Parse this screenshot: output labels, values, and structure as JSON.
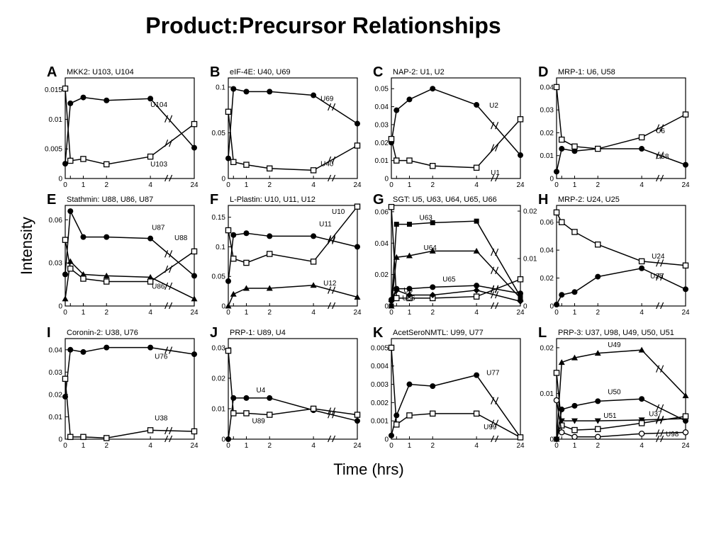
{
  "title": "Product:Precursor Relationships",
  "ylabel": "Intensity",
  "xlabel": "Time (hrs)",
  "chart_data": [
    {
      "type": "line",
      "letter": "A",
      "title": "MKK2: U103, U104",
      "x": [
        "0",
        "0.25",
        "1",
        "2",
        "4",
        "24"
      ],
      "yticks": [
        "0",
        "0.005",
        "0.01",
        "0.015"
      ],
      "ylim": [
        0,
        0.017
      ],
      "series": [
        {
          "name": "U104",
          "marker": "filled-circle",
          "values": [
            0.0025,
            0.0127,
            0.0137,
            0.0132,
            0.0135,
            0.0052
          ]
        },
        {
          "name": "U103",
          "marker": "open-square",
          "values": [
            0.0152,
            0.003,
            0.0033,
            0.0024,
            0.0037,
            0.0092
          ]
        }
      ]
    },
    {
      "type": "line",
      "letter": "B",
      "title": "eIF-4E: U40, U69",
      "x": [
        "0",
        "0.25",
        "1",
        "2",
        "4",
        "24"
      ],
      "yticks": [
        "0",
        "0.05",
        "0.1"
      ],
      "ylim": [
        0,
        0.11
      ],
      "series": [
        {
          "name": "U69",
          "marker": "filled-circle",
          "values": [
            0.022,
            0.098,
            0.095,
            0.095,
            0.091,
            0.06
          ]
        },
        {
          "name": "U40",
          "marker": "open-square",
          "values": [
            0.073,
            0.018,
            0.015,
            0.011,
            0.009,
            0.036
          ]
        }
      ]
    },
    {
      "type": "line",
      "letter": "C",
      "title": "NAP-2: U1, U2",
      "x": [
        "0",
        "0.25",
        "1",
        "2",
        "4",
        "24"
      ],
      "yticks": [
        "0",
        "0.01",
        "0.02",
        "0.03",
        "0.04",
        "0.05"
      ],
      "ylim": [
        0,
        0.056
      ],
      "series": [
        {
          "name": "U2",
          "marker": "filled-circle",
          "values": [
            0.02,
            0.038,
            0.044,
            0.05,
            0.041,
            0.013
          ]
        },
        {
          "name": "U1",
          "marker": "open-square",
          "values": [
            0.022,
            0.01,
            0.01,
            0.007,
            0.006,
            0.033
          ]
        }
      ]
    },
    {
      "type": "line",
      "letter": "D",
      "title": "MRP-1: U6, U58",
      "x": [
        "0",
        "0.25",
        "1",
        "2",
        "4",
        "24"
      ],
      "yticks": [
        "0",
        "0.01",
        "0.02",
        "0.03",
        "0.04"
      ],
      "ylim": [
        0,
        0.044
      ],
      "series": [
        {
          "name": "U58",
          "marker": "filled-circle",
          "values": [
            0.003,
            0.013,
            0.012,
            0.013,
            0.013,
            0.006
          ]
        },
        {
          "name": "U6",
          "marker": "open-square",
          "values": [
            0.04,
            0.017,
            0.014,
            0.013,
            0.018,
            0.028
          ]
        }
      ]
    },
    {
      "type": "line",
      "letter": "E",
      "title": "Stathmin: U88, U86, U87",
      "x": [
        "0",
        "0.25",
        "1",
        "2",
        "4",
        "24"
      ],
      "yticks": [
        "0",
        "0.03",
        "0.06"
      ],
      "ylim": [
        0,
        0.07
      ],
      "series": [
        {
          "name": "U87",
          "marker": "filled-circle",
          "values": [
            0.022,
            0.066,
            0.048,
            0.048,
            0.047,
            0.021
          ]
        },
        {
          "name": "U86",
          "marker": "filled-triangle",
          "values": [
            0.005,
            0.031,
            0.022,
            0.021,
            0.02,
            0.005
          ]
        },
        {
          "name": "U88",
          "marker": "open-square",
          "values": [
            0.046,
            0.026,
            0.019,
            0.017,
            0.017,
            0.038
          ]
        }
      ]
    },
    {
      "type": "line",
      "letter": "F",
      "title": "L-Plastin: U10, U11, U12",
      "x": [
        "0",
        "0.25",
        "1",
        "2",
        "4",
        "24"
      ],
      "yticks": [
        "0",
        "0.05",
        "0.1",
        "0.15"
      ],
      "ylim": [
        0,
        0.17
      ],
      "series": [
        {
          "name": "U11",
          "marker": "filled-circle",
          "values": [
            0.042,
            0.12,
            0.123,
            0.118,
            0.118,
            0.1
          ]
        },
        {
          "name": "U10",
          "marker": "open-square",
          "values": [
            0.128,
            0.08,
            0.073,
            0.088,
            0.075,
            0.168
          ]
        },
        {
          "name": "U12",
          "marker": "filled-triangle",
          "values": [
            0.0,
            0.02,
            0.03,
            0.03,
            0.035,
            0.015
          ]
        }
      ]
    },
    {
      "type": "line",
      "letter": "G",
      "title": "SGT: U5, U63, U64, U65, U66",
      "x": [
        "0",
        "0.25",
        "1",
        "2",
        "4",
        "24"
      ],
      "yticks": [
        "0",
        "0.02",
        "0.04",
        "0.06"
      ],
      "ylim": [
        0,
        0.064
      ],
      "yticks_right": [
        "0",
        "0.01",
        "0.02"
      ],
      "series": [
        {
          "name": "U5",
          "marker": "open-square",
          "values": [
            0.063,
            0.005,
            0.005,
            0.005,
            0.006,
            0.017
          ]
        },
        {
          "name": "U63",
          "marker": "filled-square",
          "values": [
            0.0,
            0.052,
            0.052,
            0.053,
            0.054,
            0.006
          ]
        },
        {
          "name": "U64",
          "marker": "filled-triangle",
          "values": [
            0.0,
            0.031,
            0.032,
            0.035,
            0.035,
            0.005
          ]
        },
        {
          "name": "U65",
          "marker": "filled-circle",
          "values": [
            0.004,
            0.011,
            0.011,
            0.012,
            0.013,
            0.008
          ]
        },
        {
          "name": "U66",
          "marker": "filled-diamond",
          "values": [
            0.003,
            0.01,
            0.007,
            0.007,
            0.01,
            0.003
          ]
        }
      ]
    },
    {
      "type": "line",
      "letter": "H",
      "title": "MRP-2: U24, U25",
      "x": [
        "0",
        "0.25",
        "1",
        "2",
        "4",
        "24"
      ],
      "yticks": [
        "0",
        "0.02",
        "0.04",
        "0.06"
      ],
      "ylim": [
        0,
        0.072
      ],
      "series": [
        {
          "name": "U24",
          "marker": "open-square",
          "values": [
            0.067,
            0.06,
            0.053,
            0.044,
            0.032,
            0.029
          ]
        },
        {
          "name": "U25",
          "marker": "filled-circle",
          "values": [
            0.001,
            0.008,
            0.01,
            0.021,
            0.027,
            0.012
          ]
        }
      ]
    },
    {
      "type": "line",
      "letter": "I",
      "title": "Coronin-2: U38, U76",
      "x": [
        "0",
        "0.25",
        "1",
        "2",
        "4",
        "24"
      ],
      "yticks": [
        "0",
        "0.01",
        "0.02",
        "0.03",
        "0.04"
      ],
      "ylim": [
        0,
        0.045
      ],
      "series": [
        {
          "name": "U76",
          "marker": "filled-circle",
          "values": [
            0.019,
            0.04,
            0.039,
            0.041,
            0.041,
            0.038
          ]
        },
        {
          "name": "U38",
          "marker": "open-square",
          "values": [
            0.027,
            0.001,
            0.001,
            0.0005,
            0.004,
            0.0035
          ]
        }
      ]
    },
    {
      "type": "line",
      "letter": "J",
      "title": "PRP-1: U89, U4",
      "x": [
        "0",
        "0.25",
        "1",
        "2",
        "4",
        "24"
      ],
      "yticks": [
        "0",
        "0.01",
        "0.02",
        "0.03"
      ],
      "ylim": [
        0,
        0.033
      ],
      "series": [
        {
          "name": "U4",
          "marker": "filled-circle",
          "values": [
            0.0,
            0.0135,
            0.0135,
            0.0135,
            0.0095,
            0.006
          ]
        },
        {
          "name": "U89",
          "marker": "open-square",
          "values": [
            0.029,
            0.0085,
            0.0085,
            0.008,
            0.01,
            0.008
          ]
        }
      ]
    },
    {
      "type": "line",
      "letter": "K",
      "title": "AcetSeroNMTL: U99, U77",
      "x": [
        "0",
        "0.25",
        "1",
        "2",
        "4",
        "24"
      ],
      "yticks": [
        "0",
        "0.001",
        "0.002",
        "0.003",
        "0.004",
        "0.005"
      ],
      "ylim": [
        0,
        0.0055
      ],
      "series": [
        {
          "name": "U77",
          "marker": "filled-circle",
          "values": [
            0.0002,
            0.0013,
            0.003,
            0.0029,
            0.0035,
            0.0001
          ]
        },
        {
          "name": "U99",
          "marker": "open-square",
          "values": [
            0.005,
            0.0008,
            0.0013,
            0.0014,
            0.0014,
            0.0001
          ]
        }
      ]
    },
    {
      "type": "line",
      "letter": "L",
      "title": "PRP-3: U37, U98, U49, U50, U51",
      "x": [
        "0",
        "0.25",
        "1",
        "2",
        "4",
        "24"
      ],
      "yticks": [
        "0",
        "0.01",
        "0.02"
      ],
      "ylim": [
        0,
        0.022
      ],
      "series": [
        {
          "name": "U49",
          "marker": "filled-triangle",
          "values": [
            0.0,
            0.0168,
            0.0178,
            0.0188,
            0.0195,
            0.0095
          ]
        },
        {
          "name": "U50",
          "marker": "filled-circle",
          "values": [
            0.0,
            0.0065,
            0.0073,
            0.0083,
            0.0088,
            0.004
          ]
        },
        {
          "name": "U51",
          "marker": "filled-triangle-down",
          "values": [
            0.0,
            0.004,
            0.004,
            0.004,
            0.0042,
            0.0045
          ]
        },
        {
          "name": "U37",
          "marker": "open-square",
          "values": [
            0.0145,
            0.003,
            0.002,
            0.0022,
            0.0035,
            0.005
          ]
        },
        {
          "name": "U98",
          "marker": "open-circle",
          "values": [
            0.0085,
            0.0015,
            0.0005,
            0.0005,
            0.0012,
            0.0015
          ]
        }
      ]
    }
  ]
}
